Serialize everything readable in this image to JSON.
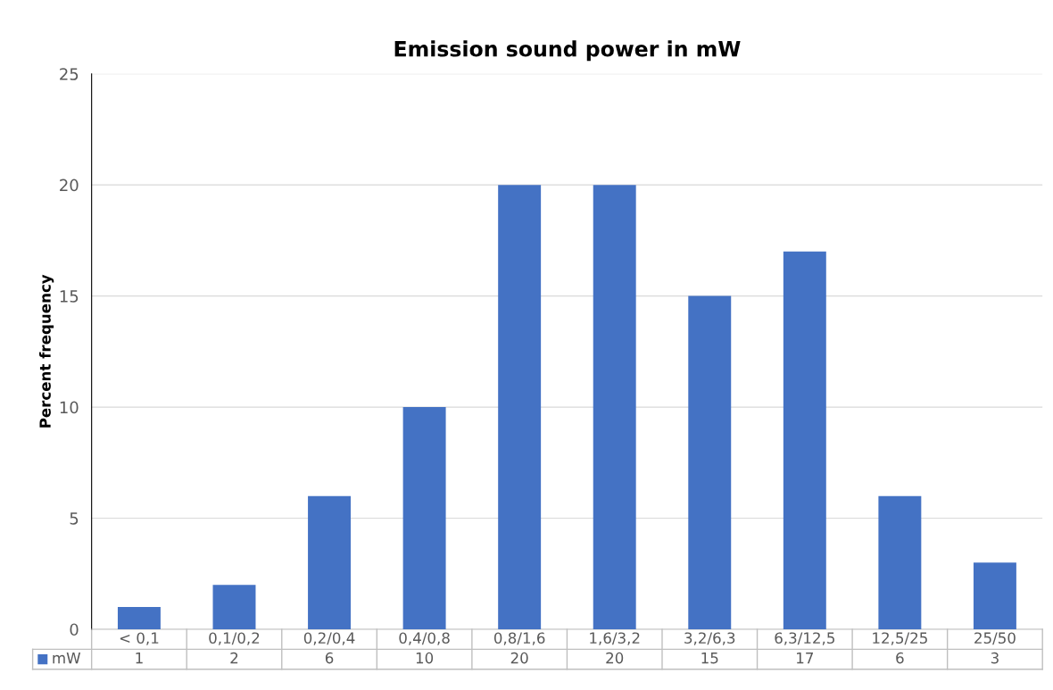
{
  "chart_data": {
    "type": "bar",
    "title": "Emission sound power in mW",
    "ylabel": "Percent frequency",
    "categories": [
      "< 0,1",
      "0,1/0,2",
      "0,2/0,4",
      "0,4/0,8",
      "0,8/1,6",
      "1,6/3,2",
      "3,2/6,3",
      "6,3/12,5",
      "12,5/25",
      "25/50"
    ],
    "series": [
      {
        "name": "mW",
        "color": "#4472c4",
        "values": [
          1,
          2,
          6,
          10,
          20,
          20,
          15,
          17,
          6,
          3
        ]
      }
    ],
    "ylim": [
      0,
      25
    ],
    "yticks": [
      0,
      5,
      10,
      15,
      20,
      25
    ],
    "grid": "y",
    "data_labels": true,
    "legend": "bottom"
  }
}
